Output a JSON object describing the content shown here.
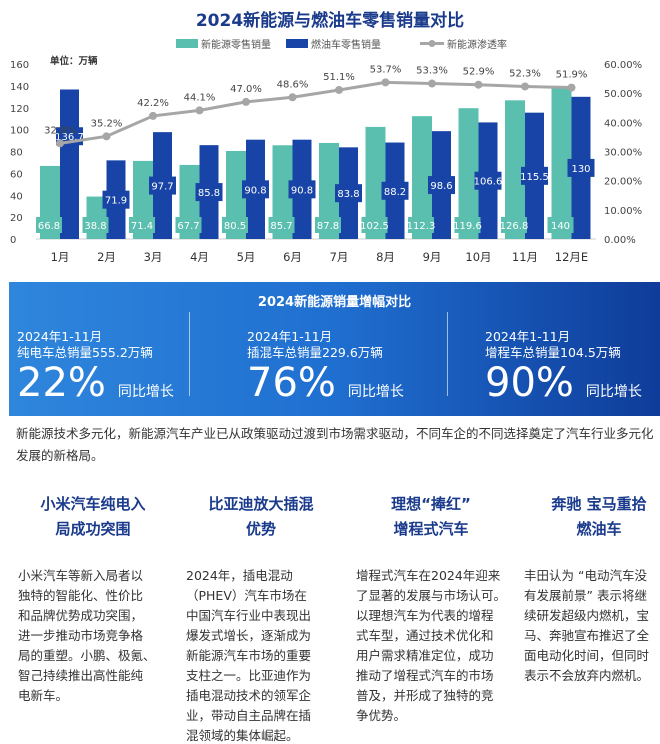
{
  "chart_data": {
    "type": "bar+line",
    "title": "2024新能源与燃油车零售销量对比",
    "unit_label": "单位：万辆",
    "categories": [
      "1月",
      "2月",
      "3月",
      "4月",
      "5月",
      "6月",
      "7月",
      "8月",
      "9月",
      "10月",
      "11月",
      "12月E"
    ],
    "series": [
      {
        "name": "新能源零售销量",
        "type": "bar",
        "axis": "left",
        "color": "#5bbfb0",
        "values": [
          66.8,
          38.8,
          71.4,
          67.7,
          80.5,
          85.7,
          87.8,
          102.5,
          112.3,
          119.6,
          126.8,
          140
        ]
      },
      {
        "name": "燃油车零售销量",
        "type": "bar",
        "axis": "left",
        "color": "#1744a6",
        "values": [
          136.7,
          71.9,
          97.7,
          85.8,
          90.8,
          90.8,
          83.8,
          88.2,
          98.6,
          106.6,
          115.5,
          130
        ]
      },
      {
        "name": "新能源渗透率",
        "type": "line",
        "axis": "right",
        "color": "#a6a6a6",
        "values": [
          32.8,
          35.2,
          42.2,
          44.1,
          47.0,
          48.6,
          51.1,
          53.7,
          53.3,
          52.9,
          52.3,
          51.9
        ],
        "labels": [
          "32.8%",
          "35.2%",
          "42.2%",
          "44.1%",
          "47.0%",
          "48.6%",
          "51.1%",
          "53.7%",
          "53.3%",
          "52.9%",
          "52.3%",
          "51.9%"
        ]
      }
    ],
    "y_left": {
      "range": [
        0,
        160
      ],
      "ticks": [
        "0",
        "20",
        "40",
        "60",
        "80",
        "100",
        "120",
        "140",
        "160"
      ]
    },
    "y_right": {
      "range": [
        0,
        60
      ],
      "ticks": [
        "0.00%",
        "10.00%",
        "20.00%",
        "30.00%",
        "40.00%",
        "50.00%",
        "60.00%"
      ]
    },
    "legend_position": "top",
    "grid": false
  },
  "banner": {
    "title": "2024新能源销量增幅对比",
    "stats": [
      {
        "period": "2024年1-11月",
        "desc": "纯电车总销量555.2万辆",
        "pct": "22%",
        "growth": "同比增长"
      },
      {
        "period": "2024年1-11月",
        "desc": "插混车总销量229.6万辆",
        "pct": "76%",
        "growth": "同比增长"
      },
      {
        "period": "2024年1-11月",
        "desc": "增程车总销量104.5万辆",
        "pct": "90%",
        "growth": "同比增长"
      }
    ]
  },
  "summary": "新能源技术多元化，新能源汽车产业已从政策驱动过渡到市场需求驱动，不同车企的不同选择奠定了汽车行业多元化发展的新格局。",
  "columns": [
    {
      "title": [
        "小米汽车纯电入",
        "局成功突围"
      ],
      "lines": [
        "小米汽车等新入局者以",
        "独特的智能化、性价比",
        "和品牌优势成功突围，",
        "进一步推动市场竞争格",
        "局的重塑。小鹏、极氪、",
        "智己持续推出高性能纯",
        "电新车。"
      ]
    },
    {
      "title": [
        "比亚迪放大插混",
        "优势"
      ],
      "lines": [
        "2024年，插电混动",
        "（PHEV）汽车市场在",
        "中国汽车行业中表现出",
        "爆发式增长，逐渐成为",
        "新能源汽车市场的重要",
        "支柱之一。比亚迪作为",
        "插电混动技术的领军企",
        "业，带动自主品牌在插",
        "混领域的集体崛起。"
      ]
    },
    {
      "title": [
        "理想“捧红”",
        "增程式汽车"
      ],
      "lines": [
        "增程式汽车在2024年迎来",
        "了显著的发展与市场认可。",
        "以理想汽车为代表的增程",
        "式车型，通过技术优化和",
        "用户需求精准定位，成功",
        "推动了增程式汽车的市场",
        "普及，并形成了独特的竞",
        "争优势。"
      ]
    },
    {
      "title": [
        "奔驰 宝马重拾",
        "燃油车"
      ],
      "lines": [
        "丰田认为 “电动汽车没",
        "有发展前景” 表示将继",
        "续研发超级内燃机，宝",
        "马、奔驰宣布推迟了全",
        "面电动化时间，但同时",
        "表示不会放弃内燃机。"
      ]
    }
  ]
}
